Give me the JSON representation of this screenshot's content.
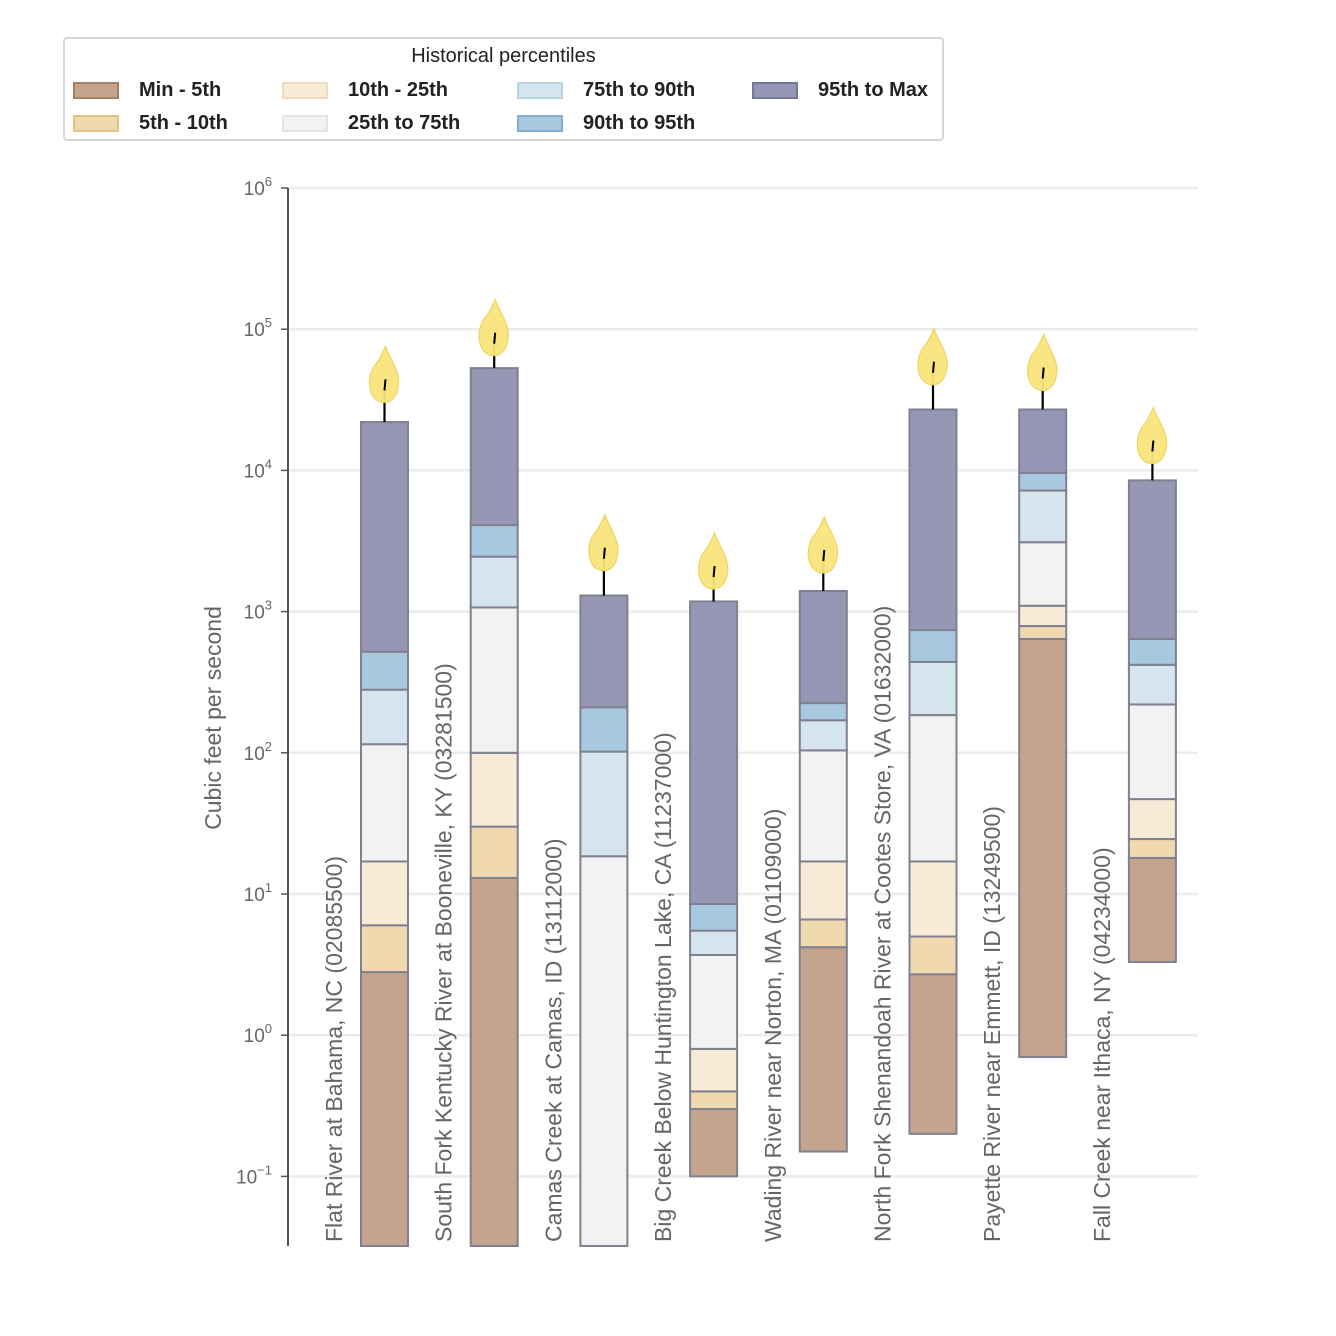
{
  "legend": {
    "title": "Historical percentiles",
    "items": [
      {
        "key": "p0_5",
        "label": "Min - 5th",
        "color": "#c4a48c",
        "border": "#a97f62"
      },
      {
        "key": "p5_10",
        "label": "5th - 10th",
        "color": "#f1d9af",
        "border": "#e3c28a"
      },
      {
        "key": "p10_25",
        "label": "10th - 25th",
        "color": "#f7ead6",
        "border": "#efdcbf"
      },
      {
        "key": "p25_75",
        "label": "25th to 75th",
        "color": "#f2f2f2",
        "border": "#e4e4e4"
      },
      {
        "key": "p75_90",
        "label": "75th to 90th",
        "color": "#d4e5ee",
        "border": "#b8d3e2"
      },
      {
        "key": "p90_95",
        "label": "90th to 95th",
        "color": "#a8c8e0",
        "border": "#85aece"
      },
      {
        "key": "p95_max",
        "label": "95th to Max",
        "color": "#9597b4",
        "border": "#75789a"
      }
    ]
  },
  "colors": {
    "segment_border": "#808090",
    "flame": "#f9e57c",
    "flame_border": "#eed35a",
    "wick": "#000000",
    "grid": "#ececec",
    "axis": "#555555"
  },
  "chart_data": {
    "type": "bar",
    "title": "",
    "xlabel": "",
    "ylabel": "Cubic feet per second",
    "yscale": "log",
    "ylim": [
      0.05,
      1000000
    ],
    "yticks": [
      {
        "base": "10",
        "exp": "−1",
        "value": 0.1
      },
      {
        "base": "10",
        "exp": "0",
        "value": 1
      },
      {
        "base": "10",
        "exp": "1",
        "value": 10
      },
      {
        "base": "10",
        "exp": "2",
        "value": 100
      },
      {
        "base": "10",
        "exp": "3",
        "value": 1000
      },
      {
        "base": "10",
        "exp": "4",
        "value": 10000
      },
      {
        "base": "10",
        "exp": "5",
        "value": 100000
      },
      {
        "base": "10",
        "exp": "6",
        "value": 1000000
      }
    ],
    "grid": true,
    "legend_position": "top-left",
    "series_order": [
      "p0_5",
      "p5_10",
      "p10_25",
      "p25_75",
      "p75_90",
      "p90_95",
      "p95_max"
    ],
    "sites": [
      {
        "name": "Flat River at Bahama, NC (02085500)",
        "bounds": [
          null,
          2.8,
          6,
          17,
          115,
          280,
          520,
          22000
        ],
        "current": 42000
      },
      {
        "name": "South Fork Kentucky River at Booneville, KY (03281500)",
        "bounds": [
          null,
          13,
          30,
          100,
          1070,
          2450,
          4100,
          53000
        ],
        "current": 90000
      },
      {
        "name": "Camas Creek at Camas, ID (13112000)",
        "bounds": [
          null,
          null,
          null,
          null,
          18.5,
          102,
          210,
          1300
        ],
        "current": 2700
      },
      {
        "name": "Big Creek Below Huntington Lake, CA (11237000)",
        "bounds": [
          0.1,
          0.3,
          0.4,
          0.8,
          3.7,
          5.5,
          8.5,
          1180
        ],
        "current": 2000
      },
      {
        "name": "Wading River near Norton, MA (01109000)",
        "bounds": [
          0.15,
          4.2,
          6.6,
          17,
          104,
          170,
          225,
          1400
        ],
        "current": 2600
      },
      {
        "name": "North Fork Shenandoah River at Cootes Store, VA (01632000)",
        "bounds": [
          0.2,
          2.7,
          5,
          17,
          185,
          440,
          740,
          27000
        ],
        "current": 56000
      },
      {
        "name": "Payette River near Emmett, ID (13249500)",
        "bounds": [
          0.7,
          640,
          790,
          1100,
          3100,
          7200,
          9600,
          27000
        ],
        "current": 51000
      },
      {
        "name": "Fall Creek near Ithaca, NY (04234000)",
        "bounds": [
          3.3,
          18,
          24.5,
          47,
          220,
          420,
          640,
          8500
        ],
        "current": 15500
      }
    ]
  }
}
